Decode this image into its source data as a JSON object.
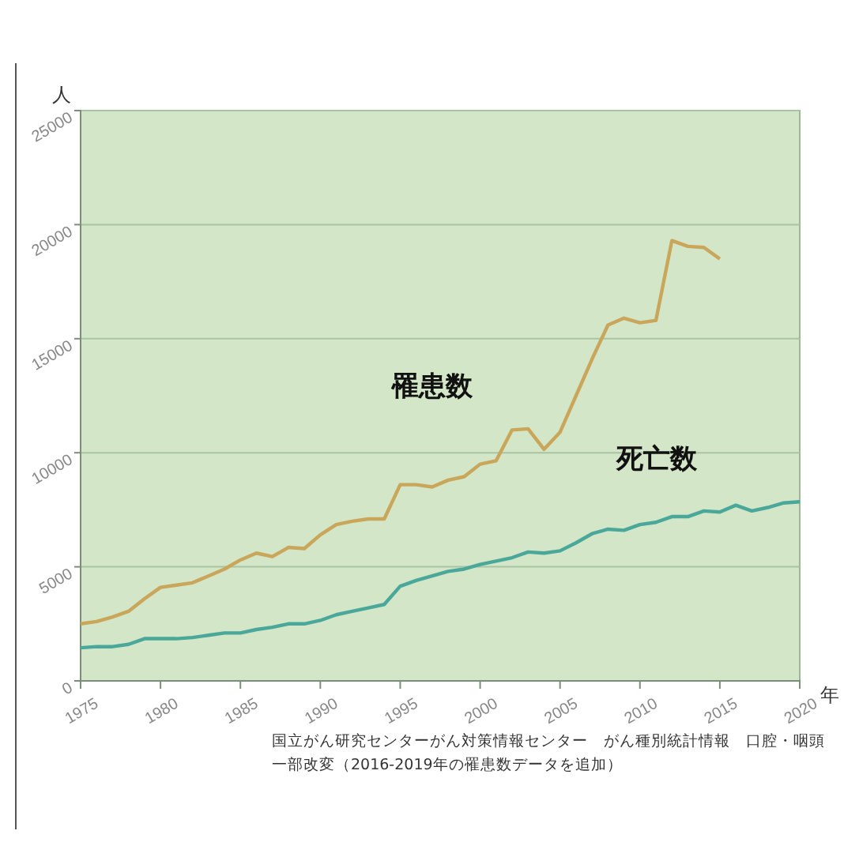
{
  "chart_data": {
    "type": "line",
    "ylabel": "人",
    "xlabel": "年",
    "xlim": [
      1975,
      2020
    ],
    "xticks": [
      1975,
      1980,
      1985,
      1990,
      1995,
      2000,
      2005,
      2010,
      2015,
      2020
    ],
    "ylim": [
      0,
      25000
    ],
    "yticks": [
      0,
      5000,
      10000,
      15000,
      20000,
      25000
    ],
    "grid": "y",
    "legend": false,
    "marker": "none",
    "line_style": "solid",
    "series": [
      {
        "name": "罹患数",
        "color": "#c9a65a",
        "x": [
          1975,
          1976,
          1977,
          1978,
          1979,
          1980,
          1981,
          1982,
          1983,
          1984,
          1985,
          1986,
          1987,
          1988,
          1989,
          1990,
          1991,
          1992,
          1993,
          1994,
          1995,
          1996,
          1997,
          1998,
          1999,
          2000,
          2001,
          2002,
          2003,
          2004,
          2005,
          2006,
          2007,
          2008,
          2009,
          2010,
          2011,
          2012,
          2013,
          2014,
          2015
        ],
        "values": [
          2500,
          2600,
          2800,
          3050,
          3600,
          4100,
          4200,
          4300,
          4600,
          4900,
          5300,
          5600,
          5450,
          5850,
          5800,
          6400,
          6850,
          7000,
          7100,
          7100,
          8600,
          8600,
          8500,
          8800,
          8950,
          9500,
          9650,
          11000,
          11050,
          10150,
          10900,
          12500,
          14100,
          15600,
          15900,
          15700,
          15800,
          19300,
          19050,
          19000,
          18500
        ]
      },
      {
        "name": "死亡数",
        "color": "#4aa89a",
        "x": [
          1975,
          1976,
          1977,
          1978,
          1979,
          1980,
          1981,
          1982,
          1983,
          1984,
          1985,
          1986,
          1987,
          1988,
          1989,
          1990,
          1991,
          1992,
          1993,
          1994,
          1995,
          1996,
          1997,
          1998,
          1999,
          2000,
          2001,
          2002,
          2003,
          2004,
          2005,
          2006,
          2007,
          2008,
          2009,
          2010,
          2011,
          2012,
          2013,
          2014,
          2015,
          2016,
          2017,
          2018,
          2019,
          2020
        ],
        "values": [
          1450,
          1500,
          1500,
          1600,
          1850,
          1850,
          1850,
          1900,
          2000,
          2100,
          2100,
          2250,
          2350,
          2500,
          2500,
          2650,
          2900,
          3050,
          3200,
          3350,
          4150,
          4400,
          4600,
          4800,
          4900,
          5100,
          5250,
          5400,
          5650,
          5600,
          5700,
          6050,
          6450,
          6650,
          6600,
          6850,
          6950,
          7200,
          7200,
          7450,
          7400,
          7700,
          7450,
          7600,
          7800,
          7850
        ]
      }
    ],
    "annotations": [
      "国立がん研究センターがん対策情報センター　がん種別統計情報　口腔・咽頭",
      "一部改変（2016-2019年の罹患数データを追加）"
    ]
  }
}
